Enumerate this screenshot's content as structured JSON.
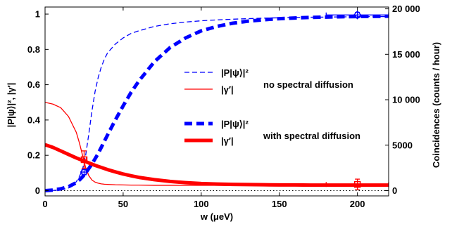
{
  "colors": {
    "blue": "#0000ff",
    "red": "#ff0000",
    "axis": "#000000",
    "zero_line": "#000000"
  },
  "chart_data": {
    "type": "line",
    "title": "",
    "xlabel": "w (μeV)",
    "ylabel_left": "|P|ψ⟩|², |γ′|",
    "ylabel_right": "Coincidences (counts / hour)",
    "xlim": [
      0,
      220
    ],
    "ylim_left": [
      -0.03,
      1.04
    ],
    "ylim_right": [
      -580,
      20200
    ],
    "x_ticks": [
      0,
      50,
      100,
      150,
      200
    ],
    "x_tick_labels": [
      "0",
      "50",
      "100",
      "150",
      "200"
    ],
    "y_left_ticks": [
      0,
      0.2,
      0.4,
      0.6,
      0.8,
      1
    ],
    "y_left_tick_labels": [
      "0",
      "0.2",
      "0.4",
      "0.6",
      "0.8",
      "1"
    ],
    "y_right_ticks": [
      0,
      5000,
      10000,
      15000,
      20000
    ],
    "y_right_tick_labels": [
      "0",
      "5000",
      "10 000",
      "15 000",
      "20 000"
    ],
    "grid": false,
    "x": [
      0,
      5,
      10,
      15,
      20,
      22,
      24,
      26,
      28,
      30,
      32,
      34,
      36,
      38,
      40,
      45,
      50,
      55,
      60,
      70,
      80,
      90,
      100,
      110,
      120,
      130,
      140,
      150,
      160,
      170,
      180,
      190,
      200,
      210,
      220
    ],
    "series": [
      {
        "name": "|P|ψ⟩|²",
        "group": "no spectral diffusion",
        "style": "dashed-thin",
        "color": "#0000ff",
        "values": [
          0,
          0.001,
          0.004,
          0.015,
          0.05,
          0.08,
          0.12,
          0.2,
          0.32,
          0.45,
          0.56,
          0.64,
          0.7,
          0.745,
          0.78,
          0.83,
          0.865,
          0.89,
          0.905,
          0.93,
          0.945,
          0.955,
          0.962,
          0.967,
          0.971,
          0.974,
          0.977,
          0.979,
          0.981,
          0.982,
          0.983,
          0.984,
          0.985,
          0.986,
          0.986
        ]
      },
      {
        "name": "|γ′|",
        "group": "no spectral diffusion",
        "style": "solid-thin",
        "color": "#ff0000",
        "values": [
          0.5,
          0.49,
          0.47,
          0.42,
          0.33,
          0.27,
          0.2,
          0.13,
          0.085,
          0.06,
          0.048,
          0.042,
          0.038,
          0.036,
          0.035,
          0.033,
          0.032,
          0.031,
          0.031,
          0.03,
          0.03,
          0.03,
          0.03,
          0.03,
          0.03,
          0.03,
          0.03,
          0.03,
          0.03,
          0.03,
          0.03,
          0.03,
          0.03,
          0.03,
          0.03
        ]
      },
      {
        "name": "|P|ψ⟩|²",
        "group": "with spectral diffusion",
        "style": "dashed-thick",
        "color": "#0000ff",
        "values": [
          0,
          0.003,
          0.01,
          0.022,
          0.045,
          0.06,
          0.078,
          0.1,
          0.125,
          0.15,
          0.18,
          0.21,
          0.245,
          0.28,
          0.315,
          0.4,
          0.48,
          0.555,
          0.62,
          0.73,
          0.81,
          0.865,
          0.905,
          0.93,
          0.948,
          0.96,
          0.968,
          0.974,
          0.978,
          0.981,
          0.983,
          0.985,
          0.986,
          0.987,
          0.988
        ]
      },
      {
        "name": "|γ′|",
        "group": "with spectral diffusion",
        "style": "solid-thick",
        "color": "#ff0000",
        "values": [
          0.26,
          0.245,
          0.225,
          0.205,
          0.185,
          0.178,
          0.171,
          0.164,
          0.157,
          0.15,
          0.143,
          0.137,
          0.131,
          0.125,
          0.119,
          0.106,
          0.094,
          0.084,
          0.075,
          0.062,
          0.052,
          0.045,
          0.04,
          0.037,
          0.035,
          0.034,
          0.033,
          0.032,
          0.032,
          0.031,
          0.031,
          0.031,
          0.031,
          0.031,
          0.031
        ]
      }
    ],
    "measured_points": [
      {
        "series": "|P|ψ⟩|²",
        "color": "#0000ff",
        "marker": "diamond",
        "x": 25,
        "y": 0.105,
        "x_err": 1.5,
        "y_err": 0.015
      },
      {
        "series": "|P|ψ⟩|²",
        "color": "#0000ff",
        "marker": "diamond",
        "x": 200,
        "y": 0.995,
        "x_err": 20,
        "y_err": 0.015
      },
      {
        "series": "|γ′|",
        "color": "#ff0000",
        "marker": "square",
        "x": 25,
        "y": 0.175,
        "x_err": 1.5,
        "y_err": 0.05
      },
      {
        "series": "|γ′|",
        "color": "#ff0000",
        "marker": "square",
        "x": 200,
        "y": 0.035,
        "x_err": 20,
        "y_err": 0.03
      }
    ],
    "zero_line": {
      "y": 0,
      "style": "dotted"
    },
    "legend": {
      "placement": "center-right",
      "groups": [
        {
          "label": "no spectral diffusion",
          "entries": [
            "|P|ψ⟩|²",
            "|γ′|"
          ]
        },
        {
          "label": "with spectral diffusion",
          "entries": [
            "|P|ψ⟩|²",
            "|γ′|"
          ]
        }
      ]
    }
  }
}
